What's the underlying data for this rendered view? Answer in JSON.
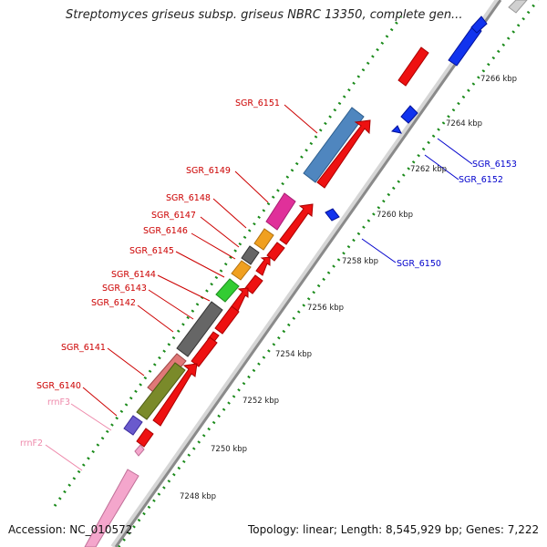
{
  "header": {
    "title": "Streptomyces griseus subsp. griseus NBRC 13350, complete gen..."
  },
  "footer": {
    "accession": "Accession: NC_010572",
    "topology": "Topology: linear; Length: 8,545,929 bp; Genes: 7,222"
  },
  "colors": {
    "forward_label": "#cc0000",
    "reverse_label": "#0000cc",
    "rrna_label": "#ee88aa",
    "tick": "#1a8a1a",
    "backbone": "#8a8a8a"
  },
  "scale": {
    "labels": [
      "7248 kbp",
      "7250 kbp",
      "7252 kbp",
      "7254 kbp",
      "7256 kbp",
      "7258 kbp",
      "7260 kbp",
      "7262 kbp",
      "7264 kbp",
      "7266 kbp"
    ]
  },
  "genes_top_strand": [
    {
      "name": "SGR_6151",
      "color": "red"
    },
    {
      "name": "SGR_6149",
      "color": "red"
    },
    {
      "name": "SGR_6148",
      "color": "red"
    },
    {
      "name": "SGR_6147",
      "color": "red"
    },
    {
      "name": "SGR_6146",
      "color": "red"
    },
    {
      "name": "SGR_6145",
      "color": "red"
    },
    {
      "name": "SGR_6144",
      "color": "red"
    },
    {
      "name": "SGR_6143",
      "color": "red"
    },
    {
      "name": "SGR_6142",
      "color": "red"
    },
    {
      "name": "SGR_6141",
      "color": "red"
    },
    {
      "name": "SGR_6140",
      "color": "red"
    },
    {
      "name": "rrnF3",
      "color": "pink"
    },
    {
      "name": "rrnF2",
      "color": "pink"
    }
  ],
  "genes_bottom_strand": [
    {
      "name": "SGR_6153",
      "color": "blue"
    },
    {
      "name": "SGR_6152",
      "color": "blue"
    },
    {
      "name": "SGR_6150",
      "color": "blue"
    }
  ]
}
